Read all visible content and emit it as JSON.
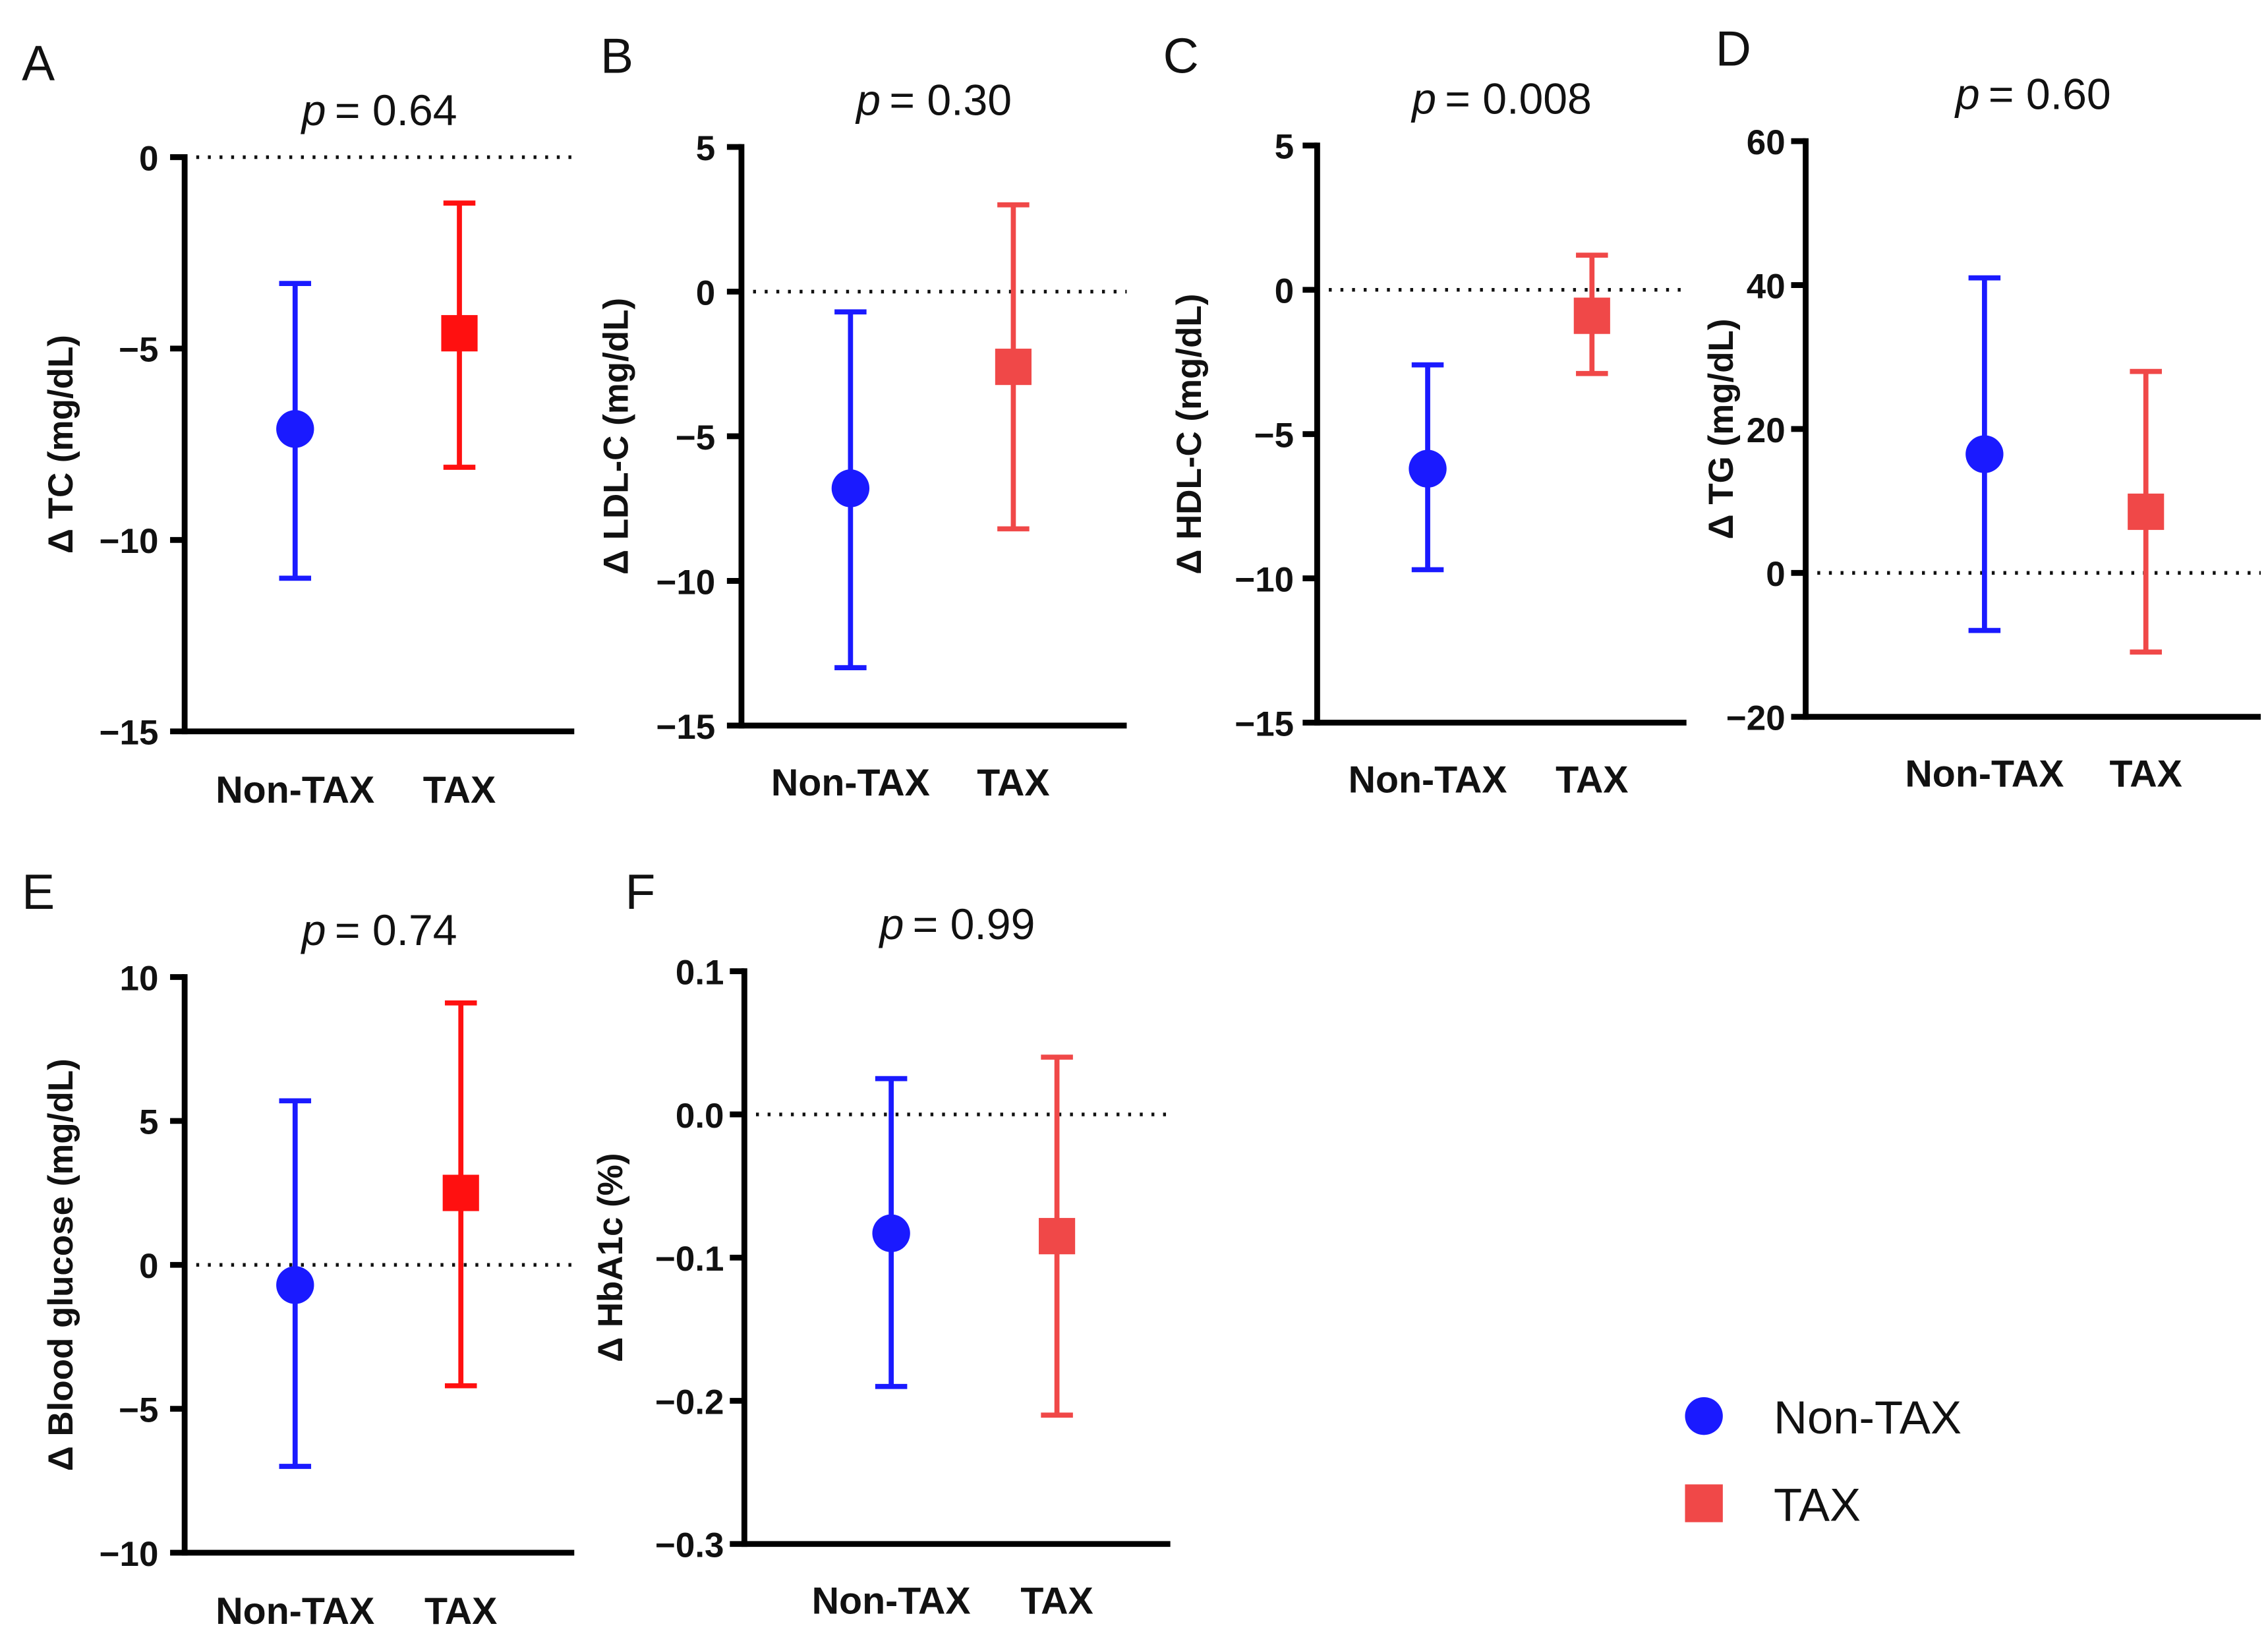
{
  "chart_data": [
    {
      "type": "scatter",
      "panel": "A",
      "p_label": "p",
      "p_value": "= 0.64",
      "ylabel": "Δ TC (mg/dL)",
      "ylim": [
        -15,
        0
      ],
      "yticks": [
        "0",
        "−5",
        "−10",
        "−15"
      ],
      "ytick_values": [
        0,
        -5,
        -10,
        -15
      ],
      "ref_line": 0,
      "categories": [
        "Non-TAX",
        "TAX"
      ],
      "series": [
        {
          "name": "Non-TAX",
          "mean": -7.1,
          "lower": -11.0,
          "upper": -3.3,
          "color": "#1a1aff"
        },
        {
          "name": "TAX",
          "mean": -4.6,
          "lower": -8.1,
          "upper": -1.2,
          "color": "#ff1010"
        }
      ]
    },
    {
      "type": "scatter",
      "panel": "B",
      "p_label": "p",
      "p_value": "= 0.30",
      "ylabel": "Δ LDL-C (mg/dL)",
      "ylim": [
        -15,
        5
      ],
      "yticks": [
        "5",
        "0",
        "−5",
        "−10",
        "−15"
      ],
      "ytick_values": [
        5,
        0,
        -5,
        -10,
        -15
      ],
      "ref_line": 0,
      "categories": [
        "Non-TAX",
        "TAX"
      ],
      "series": [
        {
          "name": "Non-TAX",
          "mean": -6.8,
          "lower": -13.0,
          "upper": -0.7,
          "color": "#1a1aff"
        },
        {
          "name": "TAX",
          "mean": -2.6,
          "lower": -8.2,
          "upper": 3.0,
          "color": "#f04848"
        }
      ]
    },
    {
      "type": "scatter",
      "panel": "C",
      "p_label": "p",
      "p_value": "= 0.008",
      "ylabel": "Δ HDL-C (mg/dL)",
      "ylim": [
        -15,
        5
      ],
      "yticks": [
        "5",
        "0",
        "−5",
        "−10",
        "−15"
      ],
      "ytick_values": [
        5,
        0,
        -5,
        -10,
        -15
      ],
      "ref_line": 0,
      "categories": [
        "Non-TAX",
        "TAX"
      ],
      "series": [
        {
          "name": "Non-TAX",
          "mean": -6.2,
          "lower": -9.7,
          "upper": -2.6,
          "color": "#1a1aff"
        },
        {
          "name": "TAX",
          "mean": -0.9,
          "lower": -2.9,
          "upper": 1.2,
          "color": "#f04848"
        }
      ]
    },
    {
      "type": "scatter",
      "panel": "D",
      "p_label": "p",
      "p_value": "= 0.60",
      "ylabel": "Δ TG (mg/dL)",
      "ylim": [
        -20,
        60
      ],
      "yticks": [
        "60",
        "40",
        "20",
        "0",
        "−20"
      ],
      "ytick_values": [
        60,
        40,
        20,
        0,
        -20
      ],
      "ref_line": 0,
      "categories": [
        "Non-TAX",
        "TAX"
      ],
      "series": [
        {
          "name": "Non-TAX",
          "mean": 16.5,
          "lower": -8.0,
          "upper": 41.0,
          "color": "#1a1aff"
        },
        {
          "name": "TAX",
          "mean": 8.5,
          "lower": -11.0,
          "upper": 28.0,
          "color": "#f04848"
        }
      ]
    },
    {
      "type": "scatter",
      "panel": "E",
      "p_label": "p",
      "p_value": "= 0.74",
      "ylabel": "Δ Blood glucose (mg/dL)",
      "ylim": [
        -10,
        10
      ],
      "yticks": [
        "10",
        "5",
        "0",
        "−5",
        "−10"
      ],
      "ytick_values": [
        10,
        5,
        0,
        -5,
        -10
      ],
      "ref_line": 0,
      "categories": [
        "Non-TAX",
        "TAX"
      ],
      "series": [
        {
          "name": "Non-TAX",
          "mean": -0.7,
          "lower": -7.0,
          "upper": 5.7,
          "color": "#1a1aff"
        },
        {
          "name": "TAX",
          "mean": 2.5,
          "lower": -4.2,
          "upper": 9.1,
          "color": "#ff1010"
        }
      ]
    },
    {
      "type": "scatter",
      "panel": "F",
      "p_label": "p",
      "p_value": "= 0.99",
      "ylabel": "Δ HbA1c (%)",
      "ylim": [
        -0.3,
        0.1
      ],
      "yticks": [
        "0.1",
        "0.0",
        "−0.1",
        "−0.2",
        "−0.3"
      ],
      "ytick_values": [
        0.1,
        0.0,
        -0.1,
        -0.2,
        -0.3
      ],
      "ref_line": 0,
      "categories": [
        "Non-TAX",
        "TAX"
      ],
      "series": [
        {
          "name": "Non-TAX",
          "mean": -0.083,
          "lower": -0.19,
          "upper": 0.025,
          "color": "#1a1aff"
        },
        {
          "name": "TAX",
          "mean": -0.085,
          "lower": -0.21,
          "upper": 0.04,
          "color": "#f04848"
        }
      ]
    }
  ],
  "legend": {
    "placement": "bottom-right",
    "items": [
      {
        "label": "Non-TAX",
        "marker": "circle",
        "color": "#1a1aff"
      },
      {
        "label": "TAX",
        "marker": "square",
        "color": "#f04848"
      }
    ]
  }
}
